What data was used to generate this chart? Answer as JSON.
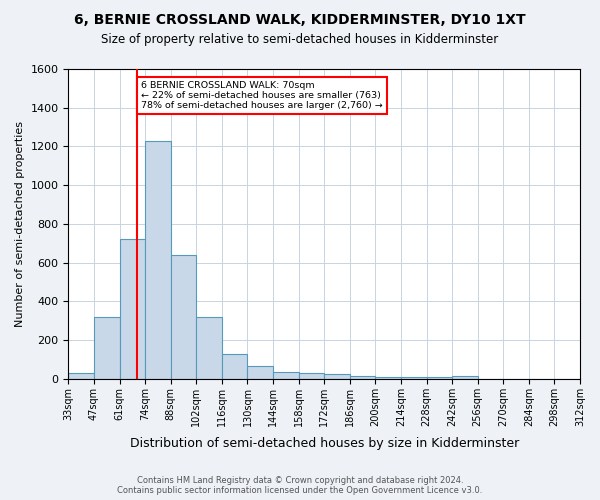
{
  "title": "6, BERNIE CROSSLAND WALK, KIDDERMINSTER, DY10 1XT",
  "subtitle": "Size of property relative to semi-detached houses in Kidderminster",
  "xlabel": "Distribution of semi-detached houses by size in Kidderminster",
  "ylabel": "Number of semi-detached properties",
  "bin_labels": [
    "33sqm",
    "47sqm",
    "61sqm",
    "74sqm",
    "88sqm",
    "102sqm",
    "116sqm",
    "130sqm",
    "144sqm",
    "158sqm",
    "172sqm",
    "186sqm",
    "200sqm",
    "214sqm",
    "228sqm",
    "242sqm",
    "256sqm",
    "270sqm",
    "284sqm",
    "298sqm",
    "312sqm"
  ],
  "bar_heights": [
    30,
    320,
    720,
    1230,
    640,
    320,
    130,
    65,
    35,
    30,
    25,
    15,
    10,
    10,
    10,
    15,
    0,
    0,
    0,
    0
  ],
  "bar_color": "#c8d8e8",
  "bar_edge_color": "#5599bb",
  "annotation_label": "6 BERNIE CROSSLAND WALK: 70sqm",
  "annotation_line1": "← 22% of semi-detached houses are smaller (763)",
  "annotation_line2": "78% of semi-detached houses are larger (2,760) →",
  "ylim": [
    0,
    1600
  ],
  "yticks": [
    0,
    200,
    400,
    600,
    800,
    1000,
    1200,
    1400,
    1600
  ],
  "footer_line1": "Contains HM Land Registry data © Crown copyright and database right 2024.",
  "footer_line2": "Contains public sector information licensed under the Open Government Licence v3.0.",
  "bg_color": "#eef2f6",
  "plot_bg_color": "#ffffff",
  "grid_color": "#c8d4e0"
}
